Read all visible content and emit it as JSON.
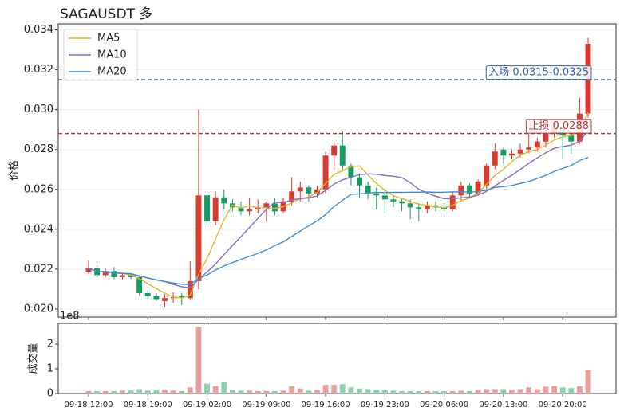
{
  "chart_data": {
    "type": "candlestick",
    "title": "SAGAUSDT 多",
    "ylabel": "价格",
    "categories": [
      "09-18 12:00",
      null,
      null,
      null,
      null,
      null,
      null,
      "09-18 19:00",
      null,
      null,
      null,
      null,
      null,
      null,
      "09-19 02:00",
      null,
      null,
      null,
      null,
      null,
      null,
      "09-19 09:00",
      null,
      null,
      null,
      null,
      null,
      null,
      "09-19 16:00",
      null,
      null,
      null,
      null,
      null,
      null,
      "09-19 23:00",
      null,
      null,
      null,
      null,
      null,
      null,
      "09-20 06:00",
      null,
      null,
      null,
      null,
      null,
      null,
      "09-20 13:00",
      null,
      null,
      null,
      null,
      null,
      null,
      "09-20 20:00",
      null,
      null,
      null
    ],
    "open": [
      0.02185,
      0.02205,
      0.0217,
      0.0219,
      0.0216,
      0.0217,
      0.0216,
      0.0208,
      0.02065,
      0.0204,
      0.02055,
      0.02065,
      0.02055,
      0.0214,
      0.0257,
      0.0244,
      0.0256,
      0.0253,
      0.0251,
      0.0249,
      0.025,
      0.0251,
      0.0253,
      0.0249,
      0.0254,
      0.0259,
      0.0261,
      0.0258,
      0.026,
      0.0277,
      0.0282,
      0.0272,
      0.0266,
      0.0262,
      0.0258,
      0.0257,
      0.0255,
      0.0254,
      0.0253,
      0.0251,
      0.025,
      0.0252,
      0.0251,
      0.025,
      0.0257,
      0.0262,
      0.0258,
      0.0262,
      0.0272,
      0.028,
      0.0277,
      0.0278,
      0.028,
      0.0281,
      0.0284,
      0.0288,
      0.0291,
      0.0287,
      0.0284,
      0.0298
    ],
    "high": [
      0.02245,
      0.0222,
      0.02205,
      0.0221,
      0.02185,
      0.0218,
      0.0217,
      0.02095,
      0.0208,
      0.02075,
      0.02085,
      0.0208,
      0.0224,
      0.03,
      0.0258,
      0.0259,
      0.026,
      0.0255,
      0.0254,
      0.0256,
      0.0255,
      0.0254,
      0.0256,
      0.0256,
      0.0266,
      0.0264,
      0.0262,
      0.0262,
      0.0279,
      0.0284,
      0.0289,
      0.0273,
      0.0268,
      0.0264,
      0.0261,
      0.026,
      0.0257,
      0.0256,
      0.0255,
      0.0253,
      0.0254,
      0.0254,
      0.0253,
      0.0259,
      0.0264,
      0.0263,
      0.0265,
      0.0273,
      0.0283,
      0.0281,
      0.028,
      0.0283,
      0.0288,
      0.0286,
      0.029,
      0.0295,
      0.0293,
      0.029,
      0.0306,
      0.0336
    ],
    "low": [
      0.02175,
      0.0216,
      0.0216,
      0.0215,
      0.0215,
      0.0215,
      0.0207,
      0.0205,
      0.0204,
      0.0201,
      0.0203,
      0.0202,
      0.0205,
      0.021,
      0.0241,
      0.0242,
      0.025,
      0.0249,
      0.0247,
      0.0247,
      0.0248,
      0.0244,
      0.0247,
      0.0248,
      0.0252,
      0.0254,
      0.0254,
      0.0256,
      0.0258,
      0.027,
      0.0269,
      0.0262,
      0.0256,
      0.0255,
      0.025,
      0.0248,
      0.0251,
      0.0249,
      0.0245,
      0.0244,
      0.0248,
      0.0249,
      0.0249,
      0.0249,
      0.0254,
      0.0256,
      0.0257,
      0.026,
      0.027,
      0.0273,
      0.0275,
      0.0276,
      0.0278,
      0.0279,
      0.0281,
      0.0286,
      0.0275,
      0.0278,
      0.0283,
      0.0296
    ],
    "close": [
      0.02205,
      0.0217,
      0.0219,
      0.0216,
      0.0217,
      0.0216,
      0.0208,
      0.02065,
      0.0205,
      0.02055,
      0.0206,
      0.02055,
      0.0214,
      0.0257,
      0.0244,
      0.0256,
      0.0253,
      0.0251,
      0.0249,
      0.025,
      0.0251,
      0.0253,
      0.0249,
      0.0254,
      0.0259,
      0.0261,
      0.0258,
      0.026,
      0.0277,
      0.0282,
      0.0272,
      0.0266,
      0.0262,
      0.0258,
      0.0257,
      0.0255,
      0.0254,
      0.0253,
      0.0251,
      0.025,
      0.0252,
      0.0251,
      0.025,
      0.0257,
      0.0262,
      0.0258,
      0.0264,
      0.0272,
      0.0279,
      0.0277,
      0.0278,
      0.028,
      0.0281,
      0.0284,
      0.0288,
      0.0291,
      0.0287,
      0.0284,
      0.0298,
      0.0333
    ],
    "up_color": "#d83a2e",
    "down_color": "#149b63",
    "series": [
      {
        "name": "MA5",
        "color": "#e6b422",
        "values": [
          0.02205,
          0.02188,
          0.02188,
          0.02181,
          0.02179,
          0.0217,
          0.02152,
          0.02127,
          0.02103,
          0.0208,
          0.0206,
          0.02055,
          0.0207,
          0.02174,
          0.02253,
          0.02353,
          0.02448,
          0.02522,
          0.02506,
          0.02518,
          0.02508,
          0.02508,
          0.02504,
          0.02514,
          0.02532,
          0.02554,
          0.02562,
          0.02584,
          0.0263,
          0.02676,
          0.02694,
          0.02714,
          0.02718,
          0.02672,
          0.0263,
          0.02596,
          0.02568,
          0.02554,
          0.0254,
          0.02526,
          0.0252,
          0.02514,
          0.02508,
          0.0252,
          0.02544,
          0.02556,
          0.02582,
          0.02626,
          0.0267,
          0.027,
          0.0274,
          0.02772,
          0.0279,
          0.028,
          0.02822,
          0.02848,
          0.02864,
          0.0287,
          0.02896,
          0.02986
        ]
      },
      {
        "name": "MA10",
        "color": "#8a6cc4",
        "values": [
          0.02205,
          0.02188,
          0.02188,
          0.02181,
          0.02179,
          0.02177,
          0.02166,
          0.02156,
          0.02146,
          0.02138,
          0.02124,
          0.02112,
          0.02107,
          0.02148,
          0.02186,
          0.02226,
          0.02273,
          0.02319,
          0.02363,
          0.02409,
          0.02454,
          0.02501,
          0.02536,
          0.02533,
          0.02548,
          0.02553,
          0.02558,
          0.02567,
          0.02595,
          0.02627,
          0.02648,
          0.02661,
          0.02674,
          0.02678,
          0.02676,
          0.0267,
          0.02666,
          0.02659,
          0.02633,
          0.02601,
          0.02581,
          0.02566,
          0.02554,
          0.02553,
          0.02558,
          0.02561,
          0.02571,
          0.0259,
          0.02618,
          0.02645,
          0.02671,
          0.027,
          0.02731,
          0.02758,
          0.02784,
          0.02806,
          0.02815,
          0.02822,
          0.02841,
          0.02897
        ]
      },
      {
        "name": "MA20",
        "color": "#3d8fd1",
        "values": [
          0.02205,
          0.02188,
          0.02188,
          0.02181,
          0.02179,
          0.02177,
          0.02166,
          0.02156,
          0.02146,
          0.02138,
          0.02131,
          0.02124,
          0.02124,
          0.02152,
          0.02171,
          0.02196,
          0.02216,
          0.02233,
          0.02249,
          0.02264,
          0.02279,
          0.02297,
          0.02318,
          0.02337,
          0.02364,
          0.02391,
          0.02417,
          0.02442,
          0.02474,
          0.02514,
          0.02546,
          0.02575,
          0.02578,
          0.02581,
          0.02585,
          0.02584,
          0.02585,
          0.02585,
          0.02586,
          0.02586,
          0.02587,
          0.02585,
          0.02586,
          0.02587,
          0.02588,
          0.02586,
          0.0259,
          0.02596,
          0.0261,
          0.02614,
          0.0262,
          0.0263,
          0.0264,
          0.02655,
          0.0267,
          0.0269,
          0.02705,
          0.0272,
          0.02745,
          0.0276
        ]
      }
    ],
    "lines": [
      {
        "label": "入场 0.0315-0.0325",
        "value": 0.0315,
        "color": "#2f64a8"
      },
      {
        "label": "止损 0.0288",
        "value": 0.0288,
        "color": "#b03a3a"
      }
    ],
    "ylim": [
      0.0196,
      0.0343
    ],
    "yticks": [
      {
        "value": 0.02,
        "label": "0.020"
      },
      {
        "value": 0.022,
        "label": "0.022"
      },
      {
        "value": 0.024,
        "label": "0.024"
      },
      {
        "value": 0.026,
        "label": "0.026"
      },
      {
        "value": 0.028,
        "label": "0.028"
      },
      {
        "value": 0.03,
        "label": "0.030"
      },
      {
        "value": 0.032,
        "label": "0.032"
      },
      {
        "value": 0.034,
        "label": "0.034"
      }
    ],
    "grid": true,
    "legend": "upper left",
    "volume": {
      "label": "成交量",
      "offset": "1e8",
      "up_color": "#e8a09c",
      "down_color": "#8fcfae",
      "values": [
        0.1,
        0.1,
        0.1,
        0.1,
        0.12,
        0.12,
        0.18,
        0.12,
        0.12,
        0.15,
        0.12,
        0.1,
        0.25,
        2.7,
        0.4,
        0.3,
        0.45,
        0.15,
        0.12,
        0.12,
        0.1,
        0.1,
        0.1,
        0.12,
        0.3,
        0.2,
        0.12,
        0.15,
        0.35,
        0.35,
        0.38,
        0.25,
        0.2,
        0.18,
        0.15,
        0.15,
        0.12,
        0.1,
        0.1,
        0.1,
        0.1,
        0.1,
        0.1,
        0.1,
        0.12,
        0.1,
        0.15,
        0.18,
        0.18,
        0.18,
        0.15,
        0.18,
        0.25,
        0.18,
        0.28,
        0.3,
        0.25,
        0.22,
        0.3,
        0.95
      ],
      "ylim": [
        0,
        2.84
      ],
      "yticks": [
        0,
        1,
        2
      ]
    }
  }
}
